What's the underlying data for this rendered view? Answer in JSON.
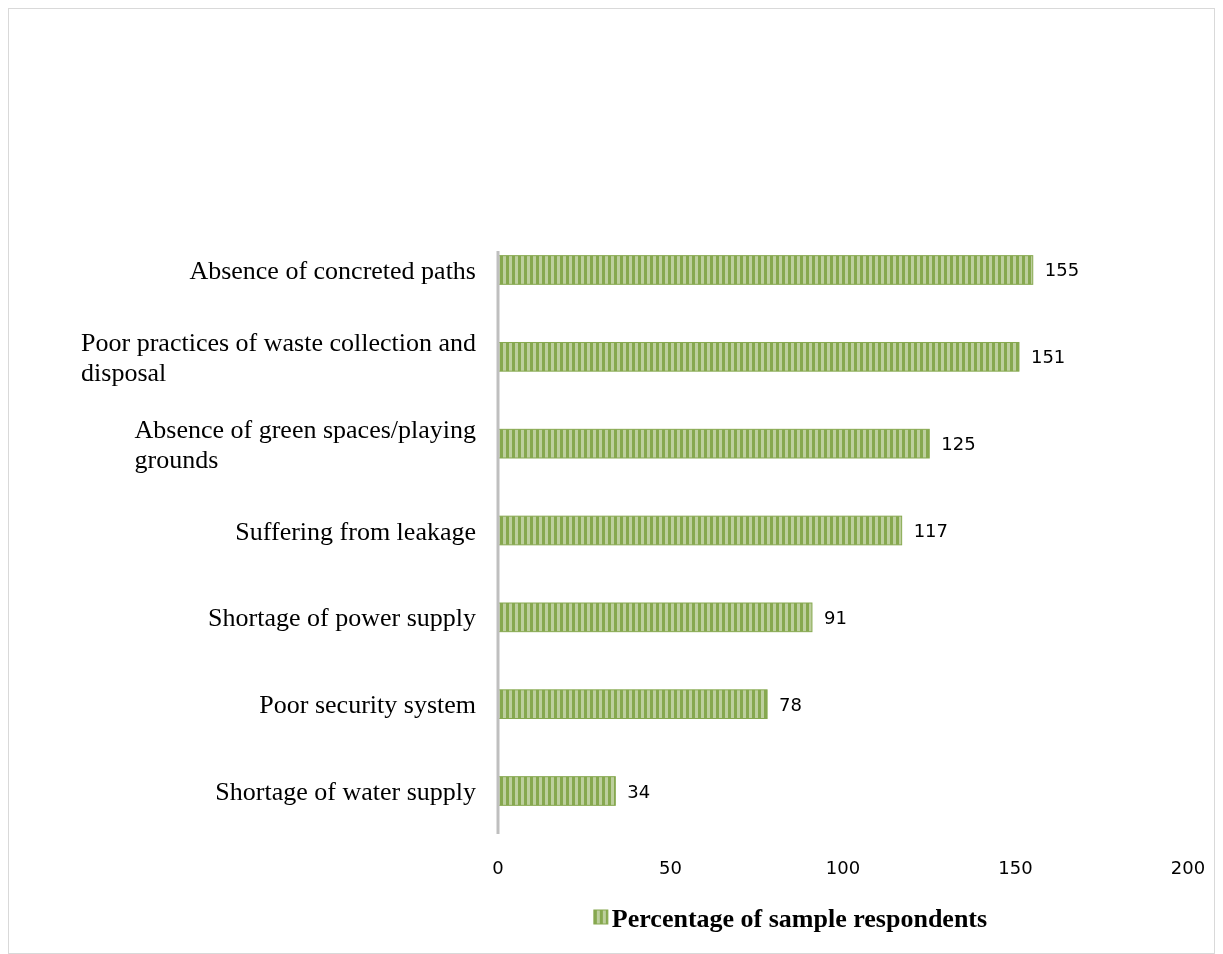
{
  "chart_data": {
    "type": "bar",
    "orientation": "horizontal",
    "categories": [
      "Absence of concreted paths",
      "Poor practices of waste collection and disposal",
      "Absence of green spaces/playing grounds",
      "Suffering from leakage",
      "Shortage of power supply",
      "Poor security system",
      "Shortage of water supply"
    ],
    "series": [
      {
        "name": "Percentage of sample respondents",
        "color": "#86a84f",
        "values": [
          155,
          151,
          125,
          117,
          91,
          78,
          34
        ]
      }
    ],
    "xlim": [
      0,
      200
    ],
    "xticks": [
      0,
      50,
      100,
      150,
      200
    ],
    "data_labels": true,
    "grid": false,
    "legend": "bottom"
  }
}
